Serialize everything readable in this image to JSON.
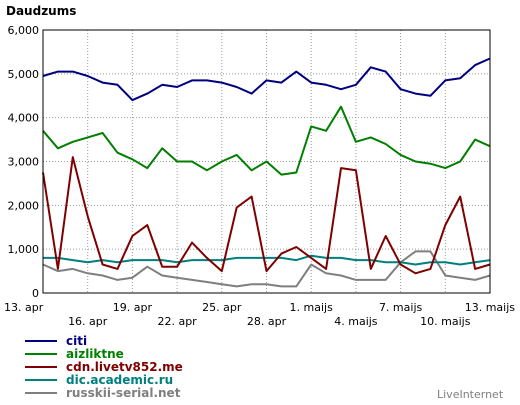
{
  "chart_data": {
    "type": "line",
    "title": "",
    "ylabel": "Daudzums",
    "xlabel": "",
    "ylim": [
      0,
      6000
    ],
    "yticks": [
      "0",
      "1,000",
      "2,000",
      "3,000",
      "4,000",
      "5,000",
      "6,000"
    ],
    "ytick_values": [
      0,
      1000,
      2000,
      3000,
      4000,
      5000,
      6000
    ],
    "grid": true,
    "legend_position": "bottom-left",
    "x_categories": [
      "13. apr",
      "14. apr",
      "15. apr",
      "16. apr",
      "17. apr",
      "18. apr",
      "19. apr",
      "20. apr",
      "21. apr",
      "22. apr",
      "23. apr",
      "24. apr",
      "25. apr",
      "26. apr",
      "27. apr",
      "28. apr",
      "29. apr",
      "30. apr",
      "1. maijs",
      "2. maijs",
      "3. maijs",
      "4. maijs",
      "5. maijs",
      "6. maijs",
      "7. maijs",
      "8. maijs",
      "9. maijs",
      "10. maijs",
      "11. maijs",
      "12. maijs",
      "13. maijs"
    ],
    "x_tick_labels_row1": [
      {
        "index": 0,
        "label": "13. apr"
      },
      {
        "index": 6,
        "label": "19. apr"
      },
      {
        "index": 12,
        "label": "25. apr"
      },
      {
        "index": 18,
        "label": "1. maijs"
      },
      {
        "index": 24,
        "label": "7. maijs"
      },
      {
        "index": 30,
        "label": "13. maijs"
      }
    ],
    "x_tick_labels_row2": [
      {
        "index": 3,
        "label": "16. apr"
      },
      {
        "index": 9,
        "label": "22. apr"
      },
      {
        "index": 15,
        "label": "28. apr"
      },
      {
        "index": 21,
        "label": "4. maijs"
      },
      {
        "index": 27,
        "label": "10. maijs"
      }
    ],
    "series": [
      {
        "name": "citi",
        "color": "#00007f",
        "values": [
          4950,
          5050,
          5050,
          4950,
          4800,
          4750,
          4400,
          4550,
          4750,
          4700,
          4850,
          4850,
          4800,
          4700,
          4550,
          4850,
          4800,
          5050,
          4800,
          4750,
          4650,
          4750,
          5150,
          5050,
          4650,
          4550,
          4500,
          4850,
          4900,
          5200,
          5350
        ]
      },
      {
        "name": "aizliktne",
        "color": "#007f00",
        "values": [
          3700,
          3300,
          3450,
          3550,
          3650,
          3200,
          3050,
          2850,
          3300,
          3000,
          3000,
          2800,
          3000,
          3150,
          2800,
          3000,
          2700,
          2750,
          3800,
          3700,
          4250,
          3450,
          3550,
          3400,
          3150,
          3000,
          2950,
          2850,
          3000,
          3500,
          3350
        ]
      },
      {
        "name": "cdn.livetv852.me",
        "color": "#7f0000",
        "values": [
          2750,
          550,
          3100,
          1750,
          650,
          550,
          1300,
          1550,
          600,
          600,
          1150,
          800,
          500,
          1950,
          2200,
          500,
          900,
          1050,
          800,
          550,
          2850,
          2800,
          550,
          1300,
          650,
          450,
          550,
          1550,
          2200,
          550,
          650
        ]
      },
      {
        "name": "dic.academic.ru",
        "color": "#007f7f",
        "values": [
          800,
          800,
          750,
          700,
          750,
          700,
          750,
          750,
          750,
          700,
          750,
          750,
          750,
          800,
          800,
          800,
          800,
          750,
          850,
          800,
          800,
          750,
          750,
          700,
          700,
          650,
          700,
          700,
          650,
          700,
          750
        ]
      },
      {
        "name": "russkii-serial.net",
        "color": "#7f7f7f",
        "values": [
          650,
          500,
          550,
          450,
          400,
          300,
          350,
          600,
          400,
          350,
          300,
          250,
          200,
          150,
          200,
          200,
          150,
          150,
          650,
          450,
          400,
          300,
          300,
          300,
          700,
          950,
          950,
          400,
          350,
          300,
          400
        ]
      }
    ],
    "brand": "LiveInternet"
  }
}
